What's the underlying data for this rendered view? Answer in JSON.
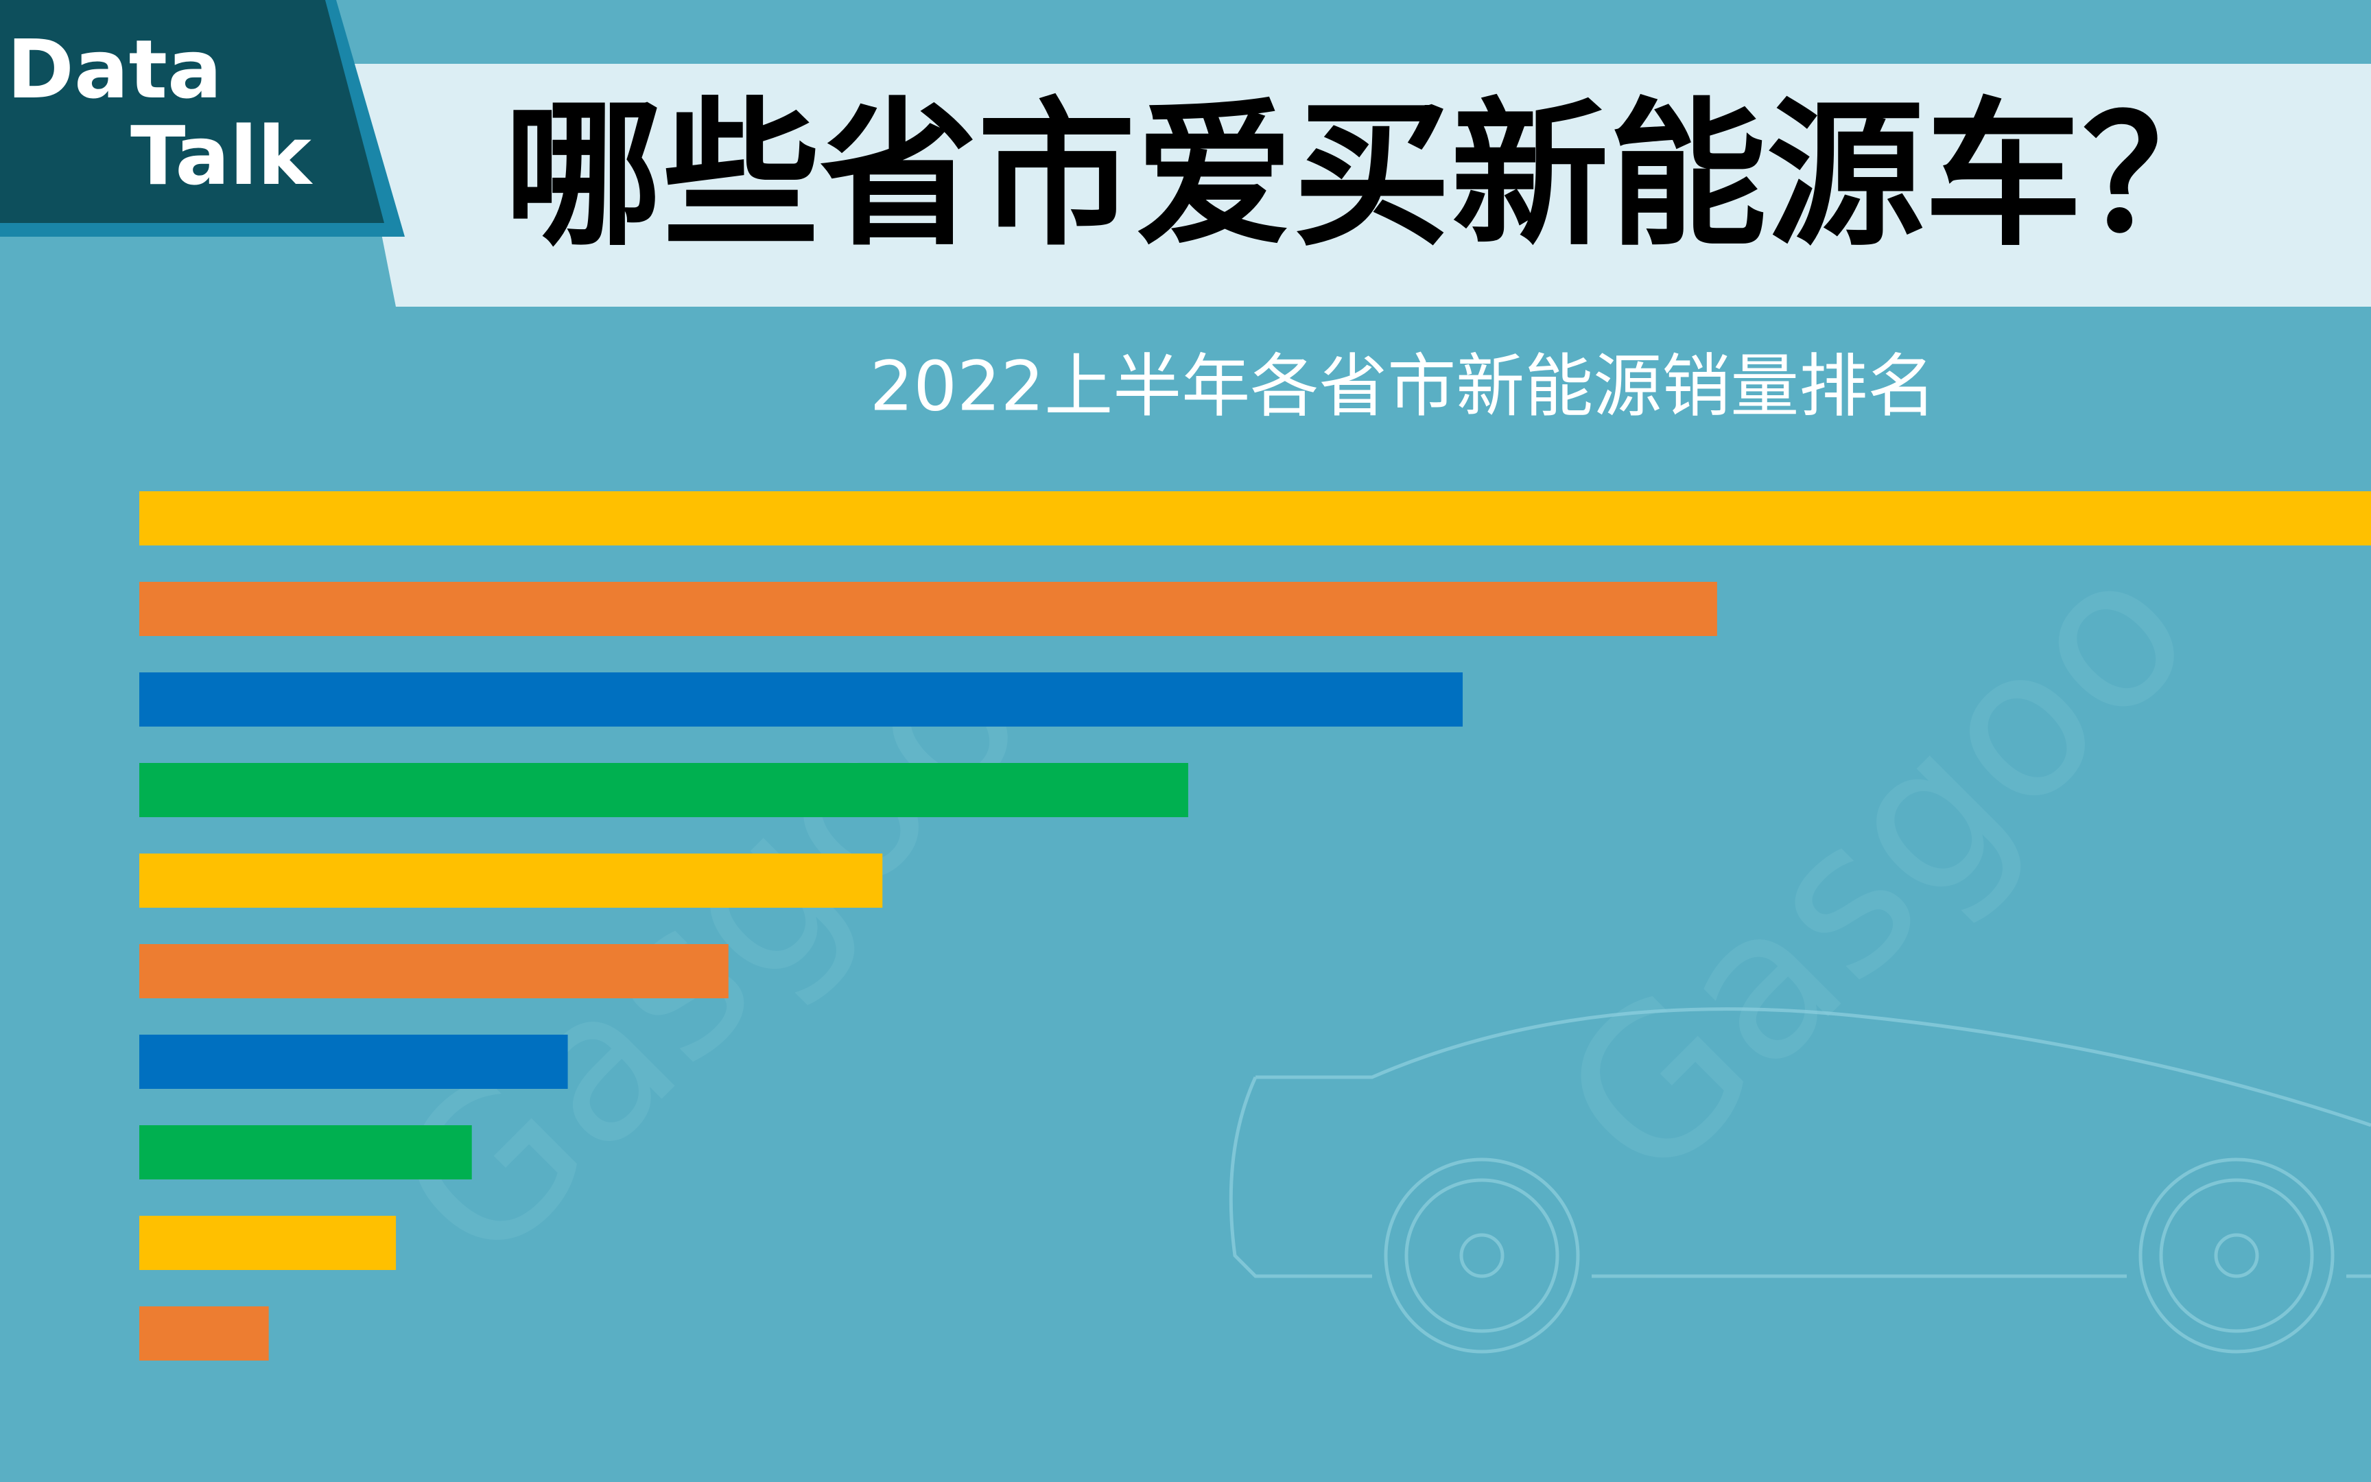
{
  "badge": [
    "Data",
    "Talk"
  ],
  "watermark": "Gasgoo",
  "chart_data": {
    "type": "barh",
    "title": "哪些省市爱买新能源车？",
    "subtitle": "2022上半年各省市新能源销量排名",
    "values": [
      100,
      70.7,
      59.3,
      47.0,
      33.3,
      26.4,
      19.2,
      14.9,
      11.5,
      5.8
    ],
    "colors": [
      "#ffc000",
      "#ed7d31",
      "#0070c0",
      "#00b050",
      "#ffc000",
      "#ed7d31",
      "#0070c0",
      "#00b050",
      "#ffc000",
      "#ed7d31"
    ],
    "xlim": [
      0,
      100
    ]
  }
}
